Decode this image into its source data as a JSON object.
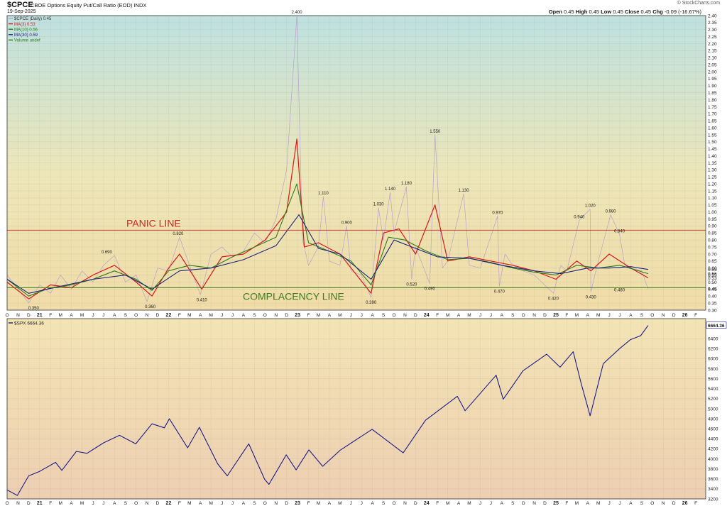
{
  "header": {
    "symbol": "$CPCE",
    "description": "CBOE Options Equity Put/Call Ratio (EOD)  INDX",
    "date": "19-Sep-2025",
    "copyright": "© StockCharts.com",
    "open_label": "Open",
    "open": "0.45",
    "high_label": "High",
    "high": "0.45",
    "low_label": "Low",
    "low": "0.45",
    "close_label": "Close",
    "close": "0.45",
    "chg_label": "Chg",
    "chg": "-0.09 (-16.67%)"
  },
  "colors": {
    "cpce": "#b7a2cc",
    "ma3": "#d61818",
    "ma10": "#2e7d1a",
    "ma30": "#1a237e",
    "spx": "#1a1a8c",
    "panic": "#d62020",
    "complacency": "#3e7d1f",
    "frame": "#333333"
  },
  "chart_data": [
    {
      "type": "line",
      "panel": "top",
      "legend": [
        {
          "label": "$CPCE (Daily) 0.45",
          "color": "#b7a2cc"
        },
        {
          "label": "MA(3) 0.53",
          "color": "#d61818"
        },
        {
          "label": "MA(10) 0.56",
          "color": "#2e7d1a"
        },
        {
          "label": "MA(30) 0.59",
          "color": "#1a237e"
        },
        {
          "label": "Volume undef",
          "color": "#2e7d1a"
        }
      ],
      "ylim": [
        0.3,
        2.4
      ],
      "y_ticks": [
        "0.30",
        "0.35",
        "0.40",
        "0.45",
        "0.50",
        "0.55",
        "0.60",
        "0.65",
        "0.70",
        "0.75",
        "0.80",
        "0.85",
        "0.90",
        "0.95",
        "1.00",
        "1.05",
        "1.10",
        "1.15",
        "1.20",
        "1.25",
        "1.30",
        "1.35",
        "1.40",
        "1.45",
        "1.50",
        "1.55",
        "1.60",
        "1.65",
        "1.70",
        "1.75",
        "1.80",
        "1.85",
        "1.90",
        "1.95",
        "2.00",
        "2.05",
        "2.10",
        "2.15",
        "2.20",
        "2.25",
        "2.30",
        "2.35",
        "2.40"
      ],
      "right_labels": [
        {
          "text": "0.59",
          "y": 0.59
        },
        {
          "text": "0.56",
          "y": 0.56
        },
        {
          "text": "0.53",
          "y": 0.53
        },
        {
          "text": "0.45",
          "y": 0.45
        }
      ],
      "x_ticks": [
        "O",
        "N",
        "D",
        "21",
        "F",
        "M",
        "A",
        "M",
        "J",
        "J",
        "A",
        "S",
        "O",
        "N",
        "D",
        "22",
        "F",
        "M",
        "A",
        "M",
        "J",
        "J",
        "A",
        "S",
        "O",
        "N",
        "D",
        "23",
        "F",
        "M",
        "A",
        "M",
        "J",
        "J",
        "A",
        "S",
        "O",
        "N",
        "D",
        "24",
        "F",
        "M",
        "A",
        "M",
        "J",
        "J",
        "A",
        "S",
        "O",
        "N",
        "D",
        "25",
        "F",
        "M",
        "A",
        "M",
        "J",
        "J",
        "A",
        "S",
        "O",
        "N",
        "D",
        "26",
        "F"
      ],
      "x_range": [
        "2020-10",
        "2026-02"
      ],
      "panic_line": {
        "label": "PANIC LINE",
        "value": 0.87
      },
      "complacency_line": {
        "label": "COMPLACENCY LINE",
        "value": 0.46
      },
      "annotations": [
        {
          "text": "0.350",
          "date": "2020-12-15",
          "value": 0.35
        },
        {
          "text": "0.690",
          "date": "2021-07-10",
          "value": 0.69
        },
        {
          "text": "0.360",
          "date": "2021-11-10",
          "value": 0.36
        },
        {
          "text": "0.820",
          "date": "2022-01-28",
          "value": 0.82
        },
        {
          "text": "0.410",
          "date": "2022-04-05",
          "value": 0.41
        },
        {
          "text": "2.400",
          "date": "2022-12-30",
          "value": 2.4
        },
        {
          "text": "1.110",
          "date": "2023-03-15",
          "value": 1.11
        },
        {
          "text": "0.900",
          "date": "2023-05-20",
          "value": 0.9
        },
        {
          "text": "0.390",
          "date": "2023-07-28",
          "value": 0.39
        },
        {
          "text": "1.030",
          "date": "2023-08-18",
          "value": 1.03
        },
        {
          "text": "1.140",
          "date": "2023-09-20",
          "value": 1.14
        },
        {
          "text": "1.180",
          "date": "2023-11-05",
          "value": 1.18
        },
        {
          "text": "0.520",
          "date": "2023-11-20",
          "value": 0.52
        },
        {
          "text": "0.490",
          "date": "2024-01-10",
          "value": 0.49
        },
        {
          "text": "1.550",
          "date": "2024-01-25",
          "value": 1.55
        },
        {
          "text": "1.130",
          "date": "2024-04-15",
          "value": 1.13
        },
        {
          "text": "0.970",
          "date": "2024-07-20",
          "value": 0.97
        },
        {
          "text": "0.470",
          "date": "2024-07-25",
          "value": 0.47
        },
        {
          "text": "0.420",
          "date": "2024-12-25",
          "value": 0.42
        },
        {
          "text": "0.940",
          "date": "2025-03-08",
          "value": 0.94
        },
        {
          "text": "1.020",
          "date": "2025-04-08",
          "value": 1.02
        },
        {
          "text": "0.430",
          "date": "2025-04-10",
          "value": 0.43
        },
        {
          "text": "0.980",
          "date": "2025-06-05",
          "value": 0.98
        },
        {
          "text": "0.840",
          "date": "2025-06-30",
          "value": 0.84
        },
        {
          "text": "0.480",
          "date": "2025-06-30",
          "value": 0.48
        }
      ],
      "series": [
        {
          "name": "$CPCE (Daily)",
          "dates": [
            "2020-10-01",
            "2020-11-01",
            "2020-12-01",
            "2021-01-01",
            "2021-02-01",
            "2021-03-01",
            "2021-04-01",
            "2021-05-01",
            "2021-06-01",
            "2021-07-01",
            "2021-08-01",
            "2021-09-01",
            "2021-10-01",
            "2021-11-01",
            "2021-12-01",
            "2022-01-01",
            "2022-02-01",
            "2022-03-01",
            "2022-04-01",
            "2022-05-01",
            "2022-06-01",
            "2022-07-01",
            "2022-08-01",
            "2022-09-01",
            "2022-10-01",
            "2022-11-01",
            "2022-12-01",
            "2022-12-30",
            "2023-01-15",
            "2023-02-01",
            "2023-03-01",
            "2023-03-15",
            "2023-04-01",
            "2023-05-01",
            "2023-05-20",
            "2023-06-01",
            "2023-07-01",
            "2023-07-28",
            "2023-08-18",
            "2023-09-01",
            "2023-09-20",
            "2023-10-01",
            "2023-11-05",
            "2023-11-20",
            "2023-12-01",
            "2024-01-10",
            "2024-01-25",
            "2024-02-15",
            "2024-03-01",
            "2024-04-15",
            "2024-05-01",
            "2024-06-01",
            "2024-07-20",
            "2024-07-25",
            "2024-08-10",
            "2024-09-01",
            "2024-10-01",
            "2024-11-01",
            "2024-12-25",
            "2025-01-15",
            "2025-02-01",
            "2025-03-08",
            "2025-04-08",
            "2025-04-10",
            "2025-05-01",
            "2025-06-05",
            "2025-06-30",
            "2025-07-15",
            "2025-08-01",
            "2025-09-01",
            "2025-09-19"
          ],
          "values": [
            0.55,
            0.45,
            0.35,
            0.48,
            0.42,
            0.55,
            0.45,
            0.58,
            0.5,
            0.62,
            0.69,
            0.5,
            0.55,
            0.36,
            0.6,
            0.58,
            0.82,
            0.62,
            0.41,
            0.7,
            0.75,
            0.68,
            0.72,
            0.85,
            0.78,
            0.95,
            1.3,
            2.4,
            0.8,
            0.62,
            0.75,
            1.11,
            0.65,
            0.62,
            0.9,
            0.58,
            0.55,
            0.39,
            1.03,
            0.8,
            1.14,
            0.85,
            1.18,
            0.52,
            0.75,
            0.49,
            1.55,
            0.6,
            0.65,
            1.13,
            0.62,
            0.6,
            0.97,
            0.47,
            0.7,
            0.62,
            0.58,
            0.55,
            0.42,
            0.62,
            0.58,
            0.94,
            1.02,
            0.43,
            0.65,
            0.98,
            0.84,
            0.62,
            0.6,
            0.58,
            0.45
          ]
        },
        {
          "name": "MA(3)",
          "dates": [
            "2020-10-01",
            "2020-12-01",
            "2021-02-01",
            "2021-04-01",
            "2021-06-01",
            "2021-08-01",
            "2021-10-01",
            "2021-11-15",
            "2022-01-01",
            "2022-02-01",
            "2022-04-05",
            "2022-06-01",
            "2022-08-01",
            "2022-10-01",
            "2022-12-01",
            "2022-12-30",
            "2023-01-20",
            "2023-03-01",
            "2023-05-01",
            "2023-07-28",
            "2023-09-01",
            "2023-10-15",
            "2023-12-01",
            "2024-01-25",
            "2024-03-01",
            "2024-05-01",
            "2024-07-01",
            "2024-09-01",
            "2024-11-01",
            "2025-01-01",
            "2025-03-01",
            "2025-04-10",
            "2025-06-01",
            "2025-08-01",
            "2025-09-19"
          ],
          "values": [
            0.5,
            0.38,
            0.48,
            0.46,
            0.55,
            0.62,
            0.5,
            0.4,
            0.6,
            0.7,
            0.45,
            0.68,
            0.7,
            0.8,
            1.0,
            1.52,
            0.75,
            0.78,
            0.7,
            0.42,
            0.85,
            0.88,
            0.7,
            1.05,
            0.65,
            0.68,
            0.65,
            0.62,
            0.58,
            0.52,
            0.65,
            0.58,
            0.7,
            0.6,
            0.53
          ]
        },
        {
          "name": "MA(10)",
          "dates": [
            "2020-10-01",
            "2020-12-01",
            "2021-02-01",
            "2021-04-01",
            "2021-06-01",
            "2021-08-01",
            "2021-10-01",
            "2021-11-15",
            "2022-01-01",
            "2022-03-01",
            "2022-05-01",
            "2022-07-01",
            "2022-09-01",
            "2022-11-01",
            "2022-12-30",
            "2023-02-01",
            "2023-04-01",
            "2023-06-01",
            "2023-07-28",
            "2023-09-15",
            "2023-11-01",
            "2024-01-01",
            "2024-03-01",
            "2024-05-01",
            "2024-07-01",
            "2024-09-01",
            "2024-11-01",
            "2025-01-01",
            "2025-03-01",
            "2025-05-01",
            "2025-07-01",
            "2025-09-19"
          ],
          "values": [
            0.52,
            0.4,
            0.46,
            0.48,
            0.52,
            0.58,
            0.52,
            0.44,
            0.58,
            0.62,
            0.6,
            0.68,
            0.75,
            0.82,
            1.2,
            0.78,
            0.72,
            0.65,
            0.48,
            0.82,
            0.8,
            0.72,
            0.66,
            0.67,
            0.64,
            0.6,
            0.57,
            0.55,
            0.62,
            0.6,
            0.62,
            0.56
          ]
        },
        {
          "name": "MA(30)",
          "dates": [
            "2020-10-01",
            "2020-12-01",
            "2021-03-01",
            "2021-06-01",
            "2021-09-01",
            "2021-11-15",
            "2022-02-01",
            "2022-05-01",
            "2022-08-01",
            "2022-11-01",
            "2023-01-05",
            "2023-03-01",
            "2023-05-01",
            "2023-07-28",
            "2023-10-01",
            "2023-12-01",
            "2024-02-01",
            "2024-05-01",
            "2024-08-01",
            "2024-11-01",
            "2025-01-15",
            "2025-04-01",
            "2025-06-01",
            "2025-08-01",
            "2025-09-19"
          ],
          "values": [
            0.52,
            0.42,
            0.47,
            0.52,
            0.55,
            0.45,
            0.58,
            0.6,
            0.66,
            0.76,
            0.98,
            0.74,
            0.7,
            0.52,
            0.8,
            0.74,
            0.68,
            0.67,
            0.62,
            0.58,
            0.56,
            0.6,
            0.6,
            0.61,
            0.59
          ]
        }
      ]
    },
    {
      "type": "line",
      "panel": "bottom",
      "legend": [
        {
          "label": "$SPX 6664.36",
          "color": "#1a1a8c"
        }
      ],
      "ylim": [
        3200,
        6800
      ],
      "y_ticks": [
        "3200",
        "3400",
        "3600",
        "3800",
        "4000",
        "4200",
        "4400",
        "4600",
        "4800",
        "5000",
        "5200",
        "5400",
        "5600",
        "5800",
        "6000",
        "6200",
        "6400"
      ],
      "last_value_label": "6664.36",
      "x_ticks": [
        "O",
        "N",
        "D",
        "21",
        "F",
        "M",
        "A",
        "M",
        "J",
        "J",
        "A",
        "S",
        "O",
        "N",
        "D",
        "22",
        "F",
        "M",
        "A",
        "M",
        "J",
        "J",
        "A",
        "S",
        "O",
        "N",
        "D",
        "23",
        "F",
        "M",
        "A",
        "M",
        "J",
        "J",
        "A",
        "S",
        "O",
        "N",
        "D",
        "24",
        "F",
        "M",
        "A",
        "M",
        "J",
        "J",
        "A",
        "S",
        "O",
        "N",
        "D",
        "25",
        "F",
        "M",
        "A",
        "M",
        "J",
        "J",
        "A",
        "S",
        "O",
        "N",
        "D",
        "26",
        "F"
      ],
      "series": [
        {
          "name": "$SPX",
          "dates": [
            "2020-10-01",
            "2020-10-30",
            "2020-12-01",
            "2021-01-01",
            "2021-02-15",
            "2021-03-05",
            "2021-04-15",
            "2021-05-15",
            "2021-07-01",
            "2021-08-15",
            "2021-09-30",
            "2021-11-15",
            "2021-12-20",
            "2022-01-03",
            "2022-02-24",
            "2022-03-29",
            "2022-05-20",
            "2022-06-16",
            "2022-08-16",
            "2022-09-30",
            "2022-10-12",
            "2022-11-30",
            "2022-12-28",
            "2023-02-02",
            "2023-03-13",
            "2023-05-01",
            "2023-07-31",
            "2023-10-27",
            "2023-12-29",
            "2024-03-28",
            "2024-04-19",
            "2024-05-31",
            "2024-07-16",
            "2024-08-05",
            "2024-09-30",
            "2024-12-06",
            "2025-01-13",
            "2025-02-19",
            "2025-03-13",
            "2025-04-08",
            "2025-05-15",
            "2025-06-30",
            "2025-07-31",
            "2025-08-29",
            "2025-09-19"
          ],
          "values": [
            3380,
            3270,
            3660,
            3750,
            3930,
            3770,
            4150,
            4110,
            4320,
            4470,
            4300,
            4700,
            4620,
            4800,
            4220,
            4630,
            3900,
            3660,
            4300,
            3590,
            3490,
            4080,
            3780,
            4180,
            3850,
            4170,
            4590,
            4120,
            4770,
            5250,
            4960,
            5300,
            5670,
            5190,
            5760,
            6090,
            5830,
            6140,
            5520,
            4860,
            5900,
            6200,
            6380,
            6460,
            6664
          ]
        }
      ]
    }
  ]
}
